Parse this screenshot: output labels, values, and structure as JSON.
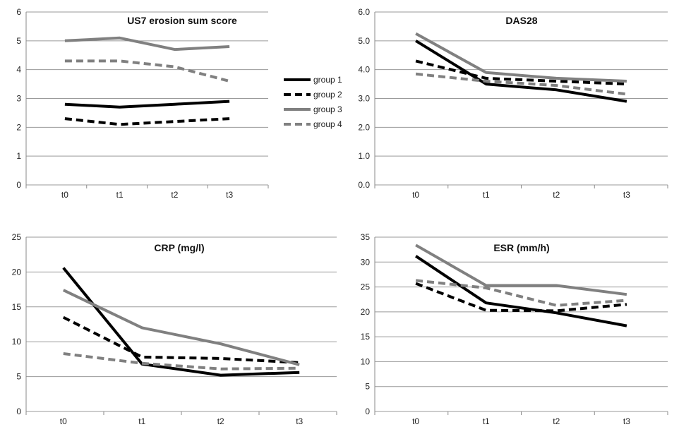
{
  "legend": {
    "placement": "between top panels",
    "entries": [
      {
        "label": "group 1",
        "color": "#000000",
        "dash": false
      },
      {
        "label": "group 2",
        "color": "#000000",
        "dash": true
      },
      {
        "label": "group 3",
        "color": "#808080",
        "dash": false
      },
      {
        "label": "group 4",
        "color": "#808080",
        "dash": true
      }
    ]
  },
  "chart_data": [
    {
      "type": "line",
      "title": "US7 erosion sum score",
      "categories": [
        "t0",
        "t1",
        "t2",
        "t3"
      ],
      "ylim": [
        0,
        6
      ],
      "yticks": [
        "0",
        "1",
        "2",
        "3",
        "4",
        "5",
        "6"
      ],
      "grid": true,
      "series": [
        {
          "name": "group 1",
          "values": [
            2.8,
            2.7,
            2.8,
            2.9
          ]
        },
        {
          "name": "group 2",
          "values": [
            2.3,
            2.1,
            2.2,
            2.3
          ]
        },
        {
          "name": "group 3",
          "values": [
            5.0,
            5.1,
            4.7,
            4.8
          ]
        },
        {
          "name": "group 4",
          "values": [
            4.3,
            4.3,
            4.1,
            3.6
          ]
        }
      ]
    },
    {
      "type": "line",
      "title": "DAS28",
      "categories": [
        "t0",
        "t1",
        "t2",
        "t3"
      ],
      "ylim": [
        0,
        6
      ],
      "yticks": [
        "0.0",
        "1.0",
        "2.0",
        "3.0",
        "4.0",
        "5.0",
        "6.0"
      ],
      "grid": true,
      "series": [
        {
          "name": "group 1",
          "values": [
            5.0,
            3.5,
            3.3,
            2.9
          ]
        },
        {
          "name": "group 2",
          "values": [
            4.3,
            3.7,
            3.6,
            3.5
          ]
        },
        {
          "name": "group 3",
          "values": [
            5.25,
            3.9,
            3.7,
            3.6
          ]
        },
        {
          "name": "group 4",
          "values": [
            3.85,
            3.6,
            3.45,
            3.15
          ]
        }
      ]
    },
    {
      "type": "line",
      "title": "CRP (mg/l)",
      "categories": [
        "t0",
        "t1",
        "t2",
        "t3"
      ],
      "ylim": [
        0,
        25
      ],
      "yticks": [
        "0",
        "5",
        "10",
        "15",
        "20",
        "25"
      ],
      "grid": true,
      "series": [
        {
          "name": "group 1",
          "values": [
            20.6,
            6.8,
            5.2,
            5.6
          ]
        },
        {
          "name": "group 2",
          "values": [
            13.5,
            7.8,
            7.6,
            7.0
          ]
        },
        {
          "name": "group 3",
          "values": [
            17.4,
            12.0,
            9.7,
            6.7
          ]
        },
        {
          "name": "group 4",
          "values": [
            8.3,
            6.9,
            6.1,
            6.2
          ]
        }
      ]
    },
    {
      "type": "line",
      "title": "ESR (mm/h)",
      "categories": [
        "t0",
        "t1",
        "t2",
        "t3"
      ],
      "ylim": [
        0,
        35
      ],
      "yticks": [
        "0",
        "5",
        "10",
        "15",
        "20",
        "25",
        "30",
        "35"
      ],
      "grid": true,
      "series": [
        {
          "name": "group 1",
          "values": [
            31.2,
            21.8,
            19.8,
            17.2
          ]
        },
        {
          "name": "group 2",
          "values": [
            25.7,
            20.3,
            20.2,
            21.5
          ]
        },
        {
          "name": "group 3",
          "values": [
            33.4,
            25.3,
            25.3,
            23.5
          ]
        },
        {
          "name": "group 4",
          "values": [
            26.3,
            24.8,
            21.3,
            22.3
          ]
        }
      ]
    }
  ]
}
